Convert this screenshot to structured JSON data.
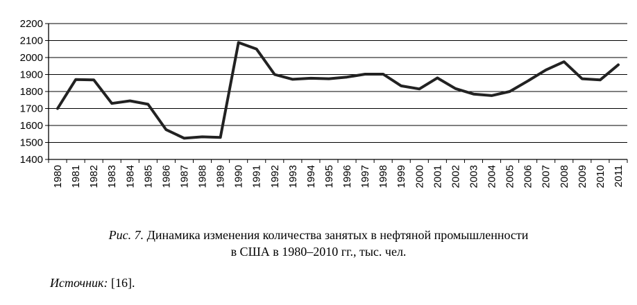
{
  "chart_data": {
    "type": "line",
    "categories": [
      "1980",
      "1981",
      "1982",
      "1983",
      "1984",
      "1985",
      "1986",
      "1987",
      "1988",
      "1989",
      "1990",
      "1991",
      "1992",
      "1993",
      "1994",
      "1995",
      "1996",
      "1997",
      "1998",
      "1999",
      "2000",
      "2001",
      "2002",
      "2003",
      "2004",
      "2005",
      "2006",
      "2007",
      "2008",
      "2009",
      "2010",
      "2011"
    ],
    "values": [
      1700,
      1870,
      1868,
      1730,
      1745,
      1725,
      1575,
      1525,
      1533,
      1530,
      2088,
      2050,
      1900,
      1872,
      1878,
      1875,
      1885,
      1902,
      1902,
      1833,
      1815,
      1880,
      1817,
      1785,
      1776,
      1800,
      1862,
      1927,
      1975,
      1875,
      1868,
      1957
    ],
    "yticks": [
      "1400",
      "1500",
      "1600",
      "1700",
      "1800",
      "1900",
      "2000",
      "2100",
      "2200"
    ],
    "ylim": [
      1400,
      2200
    ],
    "grid": true,
    "line_color": "#222222"
  },
  "caption": {
    "label": "Рис. 7.",
    "line1": " Динамика изменения количества занятых в нефтяной промышленности",
    "line2": "в США в 1980–2010 гг., тыс. чел."
  },
  "source": {
    "label": "Источник:",
    "text": " [16]."
  }
}
